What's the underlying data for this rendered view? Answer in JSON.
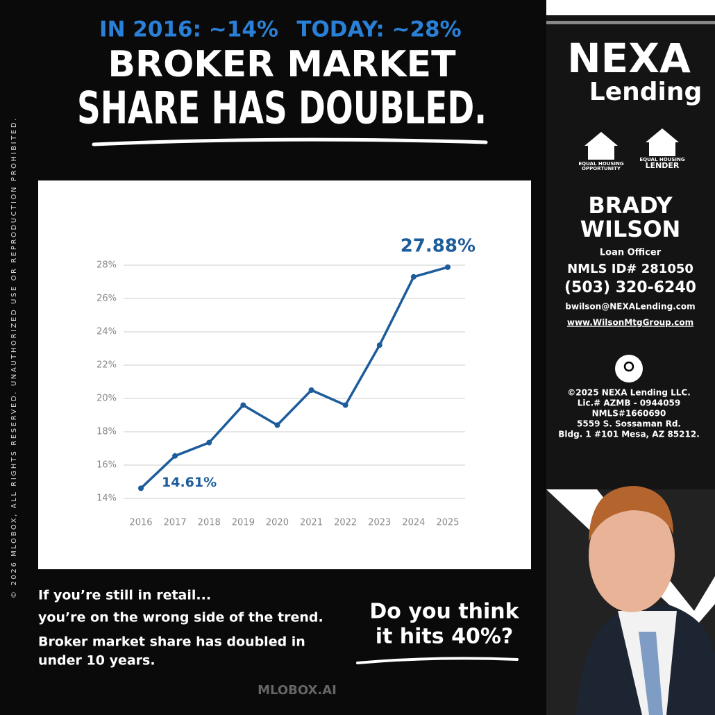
{
  "header": {
    "line1_left": "IN 2016: ~14%",
    "line1_right": "TODAY: ~28%",
    "title_line1": "BROKER MARKET",
    "title_line2": "SHARE HAS DOUBLED."
  },
  "side_notice": "© 2026 MLOBOX, ALL RIGHTS RESERVED. UNAUTHORIZED USE OR REPRODUCTION PROHIBITED.",
  "chart_data": {
    "type": "line",
    "categories": [
      "2016",
      "2017",
      "2018",
      "2019",
      "2020",
      "2021",
      "2022",
      "2023",
      "2024",
      "2025"
    ],
    "values": [
      14.61,
      16.55,
      17.35,
      19.6,
      18.4,
      20.5,
      19.6,
      23.2,
      27.3,
      27.88
    ],
    "value_labels": [
      "14.61%",
      null,
      null,
      null,
      null,
      null,
      null,
      null,
      null,
      "27.88%"
    ],
    "color": "#1d5c9b",
    "ylim": [
      14,
      28
    ],
    "yticks": [
      {
        "value": 14,
        "label": "14%"
      },
      {
        "value": 16,
        "label": "16%"
      },
      {
        "value": 18,
        "label": "18%"
      },
      {
        "value": 20,
        "label": "20%"
      },
      {
        "value": 22,
        "label": "22%"
      },
      {
        "value": 24,
        "label": "24%"
      },
      {
        "value": 26,
        "label": "26%"
      },
      {
        "value": 28,
        "label": "28%"
      }
    ],
    "grid": true
  },
  "body": {
    "lines": [
      "If you’re still in retail...",
      "you’re on the wrong side of the trend.",
      "Broker market share has doubled in",
      "under 10 years."
    ],
    "question": [
      "Do you think",
      "it hits 40%?"
    ]
  },
  "footer": "MLOBOX.AI",
  "sidebar": {
    "logo": [
      "NEXA",
      "Lending"
    ],
    "badges": [
      [
        "EQUAL HOUSING",
        "OPPORTUNITY"
      ],
      [
        "EQUAL HOUSING",
        "LENDER"
      ]
    ],
    "name": [
      "BRADY",
      "WILSON"
    ],
    "role": "Loan Officer",
    "nmls": "NMLS ID# 281050",
    "phone": "(503) 320-6240",
    "email": "bwilson@NEXALending.com",
    "website": "www.WilsonMtgGroup.com",
    "company": [
      "©2025 NEXA Lending LLC.",
      "Lic.# AZMB - 0944059",
      "NMLS#1660690",
      "5559 S. Sossaman Rd.",
      "Bldg. 1 #101 Mesa, AZ 85212."
    ]
  }
}
